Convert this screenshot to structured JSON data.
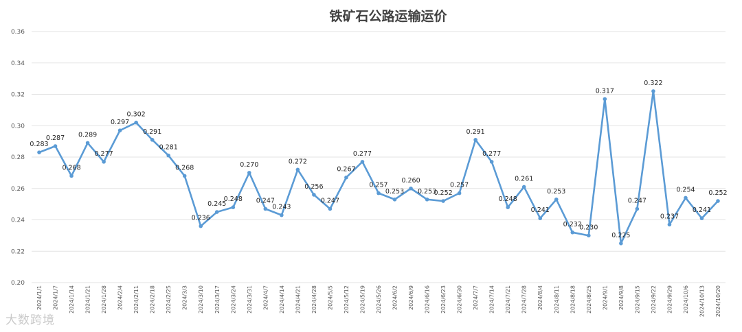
{
  "chart_data": {
    "type": "line",
    "title": "铁矿石公路运输运价",
    "ylim": [
      0.2,
      0.36
    ],
    "yticks": [
      "0.36",
      "0.34",
      "0.32",
      "0.30",
      "0.28",
      "0.26",
      "0.24",
      "0.22",
      "0.20"
    ],
    "grid": true,
    "colors": {
      "series": "#5b9bd5",
      "grid": "#e3e3e3"
    },
    "categories": [
      "2024/1/1",
      "2024/1/7",
      "2024/1/14",
      "2024/1/21",
      "2024/1/28",
      "2024/2/4",
      "2024/2/11",
      "2024/2/18",
      "2024/2/25",
      "2024/3/3",
      "2024/3/10",
      "2024/3/17",
      "2024/3/24",
      "2024/3/31",
      "2024/4/7",
      "2024/4/14",
      "2024/4/21",
      "2024/4/28",
      "2024/5/5",
      "2024/5/12",
      "2024/5/19",
      "2024/5/26",
      "2024/6/2",
      "2024/6/9",
      "2024/6/16",
      "2024/6/23",
      "2024/6/30",
      "2024/7/7",
      "2024/7/14",
      "2024/7/21",
      "2024/7/28",
      "2024/8/4",
      "2024/8/11",
      "2024/8/18",
      "2024/8/25",
      "2024/9/1",
      "2024/9/8",
      "2024/9/15",
      "2024/9/22",
      "2024/9/29",
      "2024/10/6",
      "2024/10/13",
      "2024/10/20"
    ],
    "values": [
      0.283,
      0.287,
      0.268,
      0.289,
      0.277,
      0.297,
      0.302,
      0.291,
      0.281,
      0.268,
      0.236,
      0.245,
      0.248,
      0.27,
      0.247,
      0.243,
      0.272,
      0.256,
      0.247,
      0.267,
      0.277,
      0.257,
      0.253,
      0.26,
      0.253,
      0.252,
      0.257,
      0.291,
      0.277,
      0.248,
      0.261,
      0.241,
      0.253,
      0.232,
      0.23,
      0.317,
      0.225,
      0.247,
      0.322,
      0.237,
      0.254,
      0.241,
      0.252
    ],
    "data_labels": [
      "0.283",
      "0.287",
      "0.268",
      "0.289",
      "0.277",
      "0.297",
      "0.302",
      "0.291",
      "0.281",
      "0.268",
      "0.236",
      "0.245",
      "0.248",
      "0.270",
      "0.247",
      "0.243",
      "0.272",
      "0.256",
      "0.247",
      "0.267",
      "0.277",
      "0.257",
      "0.253",
      "0.260",
      "0.253",
      "0.252",
      "0.257",
      "0.291",
      "0.277",
      "0.248",
      "0.261",
      "0.241",
      "0.253",
      "0.232",
      "0.230",
      "0.317",
      "0.225",
      "0.247",
      "0.322",
      "0.237",
      "0.254",
      "0.241",
      "0.252"
    ]
  },
  "watermark": "大数跨境"
}
